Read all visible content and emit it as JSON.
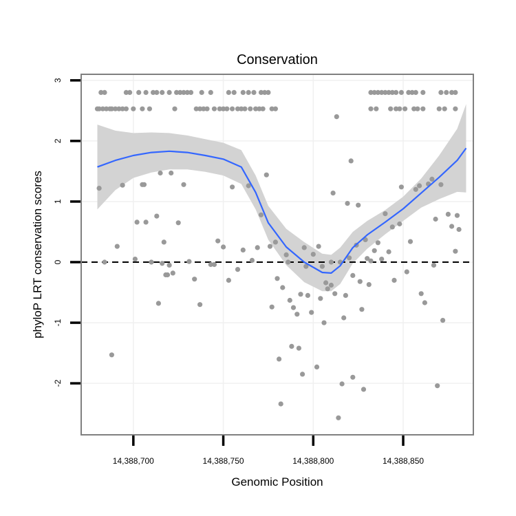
{
  "chart_data": {
    "type": "scatter",
    "title": "Conservation",
    "xlabel": "Genomic Position",
    "ylabel": "phyloP LRT conservation scores",
    "xlim": [
      14388671,
      14388889
    ],
    "ylim": [
      -2.85,
      3.1
    ],
    "x_ticks": [
      {
        "value": 14388700,
        "label": "14,388,700"
      },
      {
        "value": 14388750,
        "label": "14,388,750"
      },
      {
        "value": 14388800,
        "label": "14,388,800"
      },
      {
        "value": 14388850,
        "label": "14,388,850"
      }
    ],
    "y_ticks": [
      {
        "value": 3,
        "label": "3"
      },
      {
        "value": 2,
        "label": "2"
      },
      {
        "value": 1,
        "label": "1"
      },
      {
        "value": 0,
        "label": "0"
      },
      {
        "value": -1,
        "label": "-1"
      },
      {
        "value": -2,
        "label": "-2"
      }
    ],
    "reference_line": {
      "y": 0,
      "style": "dashed"
    },
    "grid": true,
    "colors": {
      "points": "#999999",
      "smooth": "#3366ff",
      "band": "#d3d3d3",
      "frame": "#7f7f7f"
    },
    "smooth_line": {
      "x": [
        14388680,
        14388690,
        14388700,
        14388710,
        14388720,
        14388730,
        14388740,
        14388750,
        14388760,
        14388768,
        14388775,
        14388785,
        14388795,
        14388805,
        14388810,
        14388815,
        14388822,
        14388830,
        14388840,
        14388850,
        14388860,
        14388870,
        14388880,
        14388885
      ],
      "y": [
        1.57,
        1.68,
        1.76,
        1.81,
        1.83,
        1.81,
        1.76,
        1.7,
        1.57,
        1.15,
        0.65,
        0.25,
        0.0,
        -0.17,
        -0.18,
        -0.06,
        0.24,
        0.45,
        0.66,
        0.88,
        1.14,
        1.4,
        1.68,
        1.88
      ]
    },
    "confidence_band": {
      "x": [
        14388680,
        14388690,
        14388700,
        14388710,
        14388720,
        14388730,
        14388740,
        14388750,
        14388760,
        14388768,
        14388775,
        14388785,
        14388795,
        14388805,
        14388810,
        14388815,
        14388822,
        14388830,
        14388840,
        14388850,
        14388860,
        14388870,
        14388880,
        14388885
      ],
      "upper": [
        2.27,
        2.17,
        2.13,
        2.14,
        2.13,
        2.09,
        2.03,
        1.97,
        1.85,
        1.43,
        0.93,
        0.55,
        0.33,
        0.14,
        0.12,
        0.24,
        0.5,
        0.68,
        0.86,
        1.08,
        1.38,
        1.76,
        2.2,
        2.61
      ],
      "lower": [
        0.87,
        1.19,
        1.39,
        1.48,
        1.53,
        1.53,
        1.49,
        1.43,
        1.29,
        0.87,
        0.37,
        -0.05,
        -0.33,
        -0.48,
        -0.48,
        -0.36,
        -0.02,
        0.22,
        0.46,
        0.68,
        0.9,
        1.04,
        1.16,
        1.15
      ]
    },
    "points": [
      [
        14388680,
        2.53
      ],
      [
        14388681,
        2.53
      ],
      [
        14388683,
        2.53
      ],
      [
        14388685,
        2.53
      ],
      [
        14388687,
        2.53
      ],
      [
        14388688,
        2.53
      ],
      [
        14388690,
        2.53
      ],
      [
        14388692,
        2.53
      ],
      [
        14388694,
        2.53
      ],
      [
        14388696,
        2.53
      ],
      [
        14388700,
        2.53
      ],
      [
        14388705,
        2.53
      ],
      [
        14388709,
        2.53
      ],
      [
        14388723,
        2.53
      ],
      [
        14388735,
        2.53
      ],
      [
        14388737,
        2.53
      ],
      [
        14388739,
        2.53
      ],
      [
        14388741,
        2.53
      ],
      [
        14388745,
        2.53
      ],
      [
        14388748,
        2.53
      ],
      [
        14388750,
        2.53
      ],
      [
        14388752,
        2.53
      ],
      [
        14388755,
        2.53
      ],
      [
        14388758,
        2.53
      ],
      [
        14388760,
        2.53
      ],
      [
        14388762,
        2.53
      ],
      [
        14388765,
        2.53
      ],
      [
        14388768,
        2.53
      ],
      [
        14388770,
        2.53
      ],
      [
        14388772,
        2.53
      ],
      [
        14388777,
        2.53
      ],
      [
        14388779,
        2.53
      ],
      [
        14388832,
        2.53
      ],
      [
        14388835,
        2.53
      ],
      [
        14388843,
        2.53
      ],
      [
        14388846,
        2.53
      ],
      [
        14388848,
        2.53
      ],
      [
        14388851,
        2.53
      ],
      [
        14388856,
        2.53
      ],
      [
        14388858,
        2.53
      ],
      [
        14388861,
        2.53
      ],
      [
        14388870,
        2.53
      ],
      [
        14388873,
        2.53
      ],
      [
        14388879,
        2.53
      ],
      [
        14388682,
        2.8
      ],
      [
        14388684,
        2.8
      ],
      [
        14388696,
        2.8
      ],
      [
        14388698,
        2.8
      ],
      [
        14388703,
        2.8
      ],
      [
        14388707,
        2.8
      ],
      [
        14388711,
        2.8
      ],
      [
        14388713,
        2.8
      ],
      [
        14388716,
        2.8
      ],
      [
        14388720,
        2.8
      ],
      [
        14388724,
        2.8
      ],
      [
        14388726,
        2.8
      ],
      [
        14388728,
        2.8
      ],
      [
        14388730,
        2.8
      ],
      [
        14388732,
        2.8
      ],
      [
        14388738,
        2.8
      ],
      [
        14388743,
        2.8
      ],
      [
        14388753,
        2.8
      ],
      [
        14388756,
        2.8
      ],
      [
        14388761,
        2.8
      ],
      [
        14388764,
        2.8
      ],
      [
        14388767,
        2.8
      ],
      [
        14388771,
        2.8
      ],
      [
        14388773,
        2.8
      ],
      [
        14388775,
        2.8
      ],
      [
        14388832,
        2.8
      ],
      [
        14388834,
        2.8
      ],
      [
        14388836,
        2.8
      ],
      [
        14388838,
        2.8
      ],
      [
        14388840,
        2.8
      ],
      [
        14388842,
        2.8
      ],
      [
        14388844,
        2.8
      ],
      [
        14388846,
        2.8
      ],
      [
        14388849,
        2.8
      ],
      [
        14388853,
        2.8
      ],
      [
        14388855,
        2.8
      ],
      [
        14388857,
        2.8
      ],
      [
        14388861,
        2.8
      ],
      [
        14388871,
        2.8
      ],
      [
        14388874,
        2.8
      ],
      [
        14388877,
        2.8
      ],
      [
        14388879,
        2.8
      ],
      [
        14388681,
        1.22
      ],
      [
        14388684,
        0.0
      ],
      [
        14388688,
        -1.53
      ],
      [
        14388691,
        0.26
      ],
      [
        14388694,
        1.27
      ],
      [
        14388701,
        0.05
      ],
      [
        14388702,
        0.66
      ],
      [
        14388705,
        1.28
      ],
      [
        14388706,
        1.28
      ],
      [
        14388707,
        0.66
      ],
      [
        14388710,
        0.0
      ],
      [
        14388713,
        0.76
      ],
      [
        14388714,
        -0.68
      ],
      [
        14388715,
        1.47
      ],
      [
        14388716,
        -0.02
      ],
      [
        14388717,
        0.33
      ],
      [
        14388718,
        -0.21
      ],
      [
        14388719,
        -0.21
      ],
      [
        14388720,
        -0.05
      ],
      [
        14388721,
        1.47
      ],
      [
        14388722,
        -0.18
      ],
      [
        14388725,
        0.65
      ],
      [
        14388728,
        1.28
      ],
      [
        14388731,
        0.01
      ],
      [
        14388734,
        -0.28
      ],
      [
        14388737,
        -0.7
      ],
      [
        14388743,
        -0.04
      ],
      [
        14388745,
        -0.04
      ],
      [
        14388747,
        0.35
      ],
      [
        14388750,
        0.25
      ],
      [
        14388753,
        -0.3
      ],
      [
        14388755,
        1.24
      ],
      [
        14388758,
        -0.12
      ],
      [
        14388761,
        0.2
      ],
      [
        14388764,
        1.26
      ],
      [
        14388766,
        0.03
      ],
      [
        14388769,
        0.24
      ],
      [
        14388771,
        0.78
      ],
      [
        14388774,
        1.44
      ],
      [
        14388776,
        0.26
      ],
      [
        14388777,
        -0.74
      ],
      [
        14388779,
        0.33
      ],
      [
        14388780,
        -0.27
      ],
      [
        14388781,
        -1.6
      ],
      [
        14388782,
        -2.34
      ],
      [
        14388783,
        -0.42
      ],
      [
        14388785,
        0.12
      ],
      [
        14388786,
        0.0
      ],
      [
        14388787,
        -0.63
      ],
      [
        14388788,
        -1.39
      ],
      [
        14388789,
        -0.75
      ],
      [
        14388791,
        -0.86
      ],
      [
        14388792,
        -1.42
      ],
      [
        14388793,
        -0.53
      ],
      [
        14388794,
        -1.85
      ],
      [
        14388795,
        0.24
      ],
      [
        14388796,
        -0.07
      ],
      [
        14388797,
        -0.55
      ],
      [
        14388799,
        -0.83
      ],
      [
        14388800,
        0.13
      ],
      [
        14388802,
        -1.73
      ],
      [
        14388803,
        0.26
      ],
      [
        14388804,
        -0.6
      ],
      [
        14388805,
        -0.07
      ],
      [
        14388806,
        -1.0
      ],
      [
        14388807,
        -0.34
      ],
      [
        14388808,
        -0.44
      ],
      [
        14388810,
        0.0
      ],
      [
        14388810,
        -0.38
      ],
      [
        14388811,
        1.14
      ],
      [
        14388812,
        -0.52
      ],
      [
        14388813,
        2.4
      ],
      [
        14388814,
        -2.57
      ],
      [
        14388815,
        0.0
      ],
      [
        14388816,
        -2.01
      ],
      [
        14388817,
        -0.92
      ],
      [
        14388818,
        -0.55
      ],
      [
        14388819,
        0.97
      ],
      [
        14388820,
        0.07
      ],
      [
        14388821,
        1.67
      ],
      [
        14388822,
        -0.22
      ],
      [
        14388822,
        -1.9
      ],
      [
        14388824,
        0.28
      ],
      [
        14388825,
        0.94
      ],
      [
        14388826,
        -0.32
      ],
      [
        14388827,
        -0.78
      ],
      [
        14388828,
        -2.1
      ],
      [
        14388829,
        0.37
      ],
      [
        14388830,
        0.06
      ],
      [
        14388831,
        -0.37
      ],
      [
        14388832,
        0.02
      ],
      [
        14388834,
        0.19
      ],
      [
        14388836,
        0.32
      ],
      [
        14388838,
        0.05
      ],
      [
        14388840,
        0.8
      ],
      [
        14388842,
        0.17
      ],
      [
        14388844,
        0.58
      ],
      [
        14388845,
        -0.3
      ],
      [
        14388848,
        0.63
      ],
      [
        14388849,
        1.24
      ],
      [
        14388852,
        -0.16
      ],
      [
        14388854,
        0.34
      ],
      [
        14388857,
        1.2
      ],
      [
        14388859,
        1.26
      ],
      [
        14388860,
        -0.52
      ],
      [
        14388862,
        -0.67
      ],
      [
        14388864,
        1.29
      ],
      [
        14388866,
        1.37
      ],
      [
        14388867,
        -0.05
      ],
      [
        14388868,
        0.71
      ],
      [
        14388869,
        -2.04
      ],
      [
        14388871,
        1.28
      ],
      [
        14388872,
        -0.96
      ],
      [
        14388875,
        0.79
      ],
      [
        14388877,
        0.59
      ],
      [
        14388879,
        0.18
      ],
      [
        14388880,
        0.77
      ],
      [
        14388881,
        0.54
      ]
    ]
  }
}
